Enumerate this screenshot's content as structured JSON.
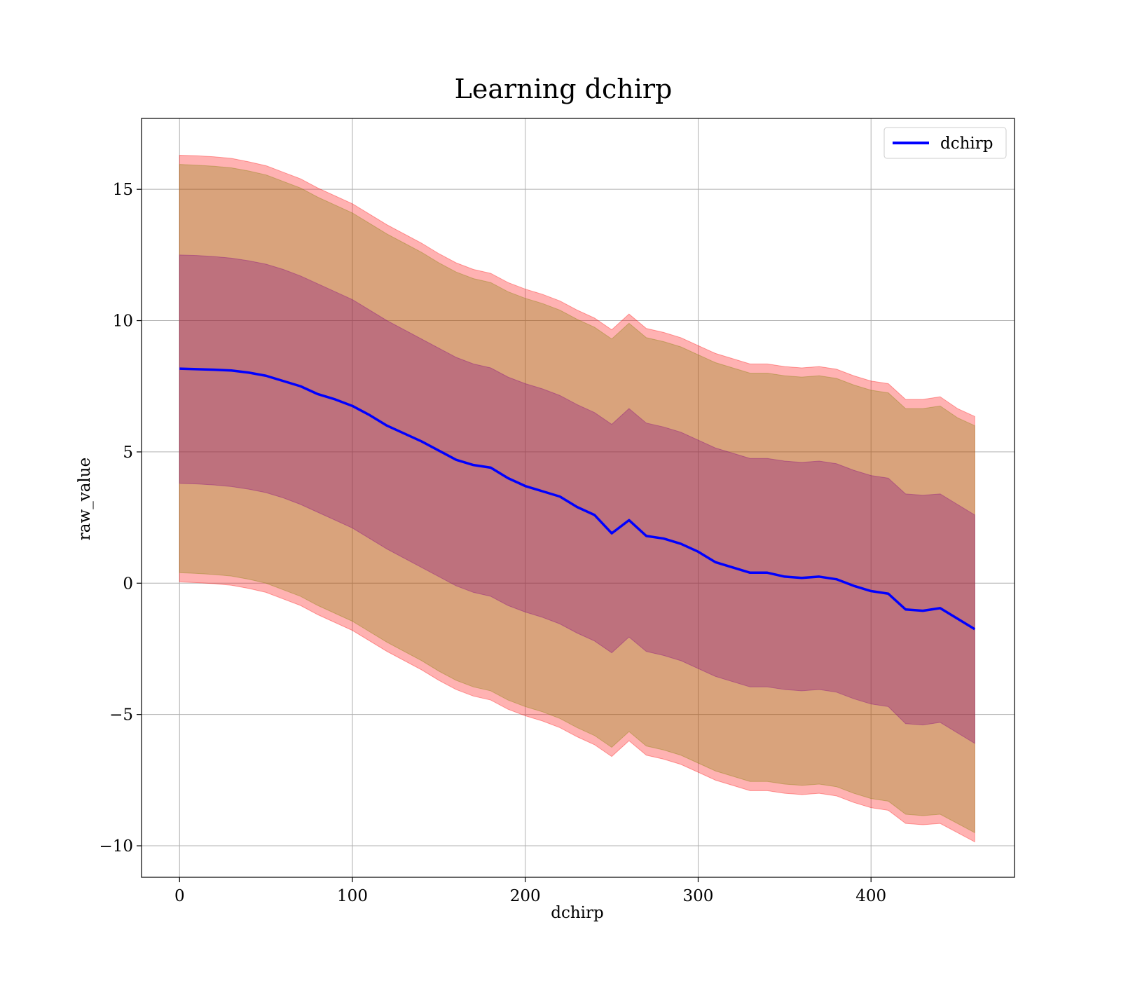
{
  "chart_data": {
    "type": "line",
    "title": "Learning dchirp",
    "xlabel": "dchirp",
    "ylabel": "raw_value",
    "xlim": [
      -22,
      483
    ],
    "ylim": [
      -11.2,
      17.7
    ],
    "xticks": [
      0,
      100,
      200,
      300,
      400
    ],
    "xtick_labels": [
      "0",
      "100",
      "200",
      "300",
      "400"
    ],
    "yticks": [
      -10,
      -5,
      0,
      5,
      10,
      15
    ],
    "ytick_labels": [
      "−10",
      "−5",
      "0",
      "5",
      "10",
      "15"
    ],
    "grid": true,
    "legend": {
      "position": "top-right",
      "entries": [
        "dchirp"
      ]
    },
    "colors": {
      "mean_line": "#0000ff",
      "band_outer": "#ff0000",
      "band_middle": "#808000",
      "band_inner": "#800080"
    },
    "x": [
      0,
      10,
      20,
      30,
      40,
      50,
      60,
      70,
      80,
      90,
      100,
      110,
      120,
      130,
      140,
      150,
      160,
      170,
      180,
      190,
      200,
      210,
      220,
      230,
      240,
      250,
      260,
      270,
      280,
      290,
      300,
      310,
      320,
      330,
      340,
      350,
      360,
      370,
      380,
      390,
      400,
      410,
      420,
      430,
      440,
      450,
      460
    ],
    "series": [
      {
        "name": "dchirp",
        "role": "mean",
        "values": [
          8.17,
          8.15,
          8.13,
          8.1,
          8.02,
          7.9,
          7.7,
          7.5,
          7.2,
          7.0,
          6.75,
          6.4,
          6.0,
          5.7,
          5.4,
          5.05,
          4.7,
          4.5,
          4.4,
          4.0,
          3.7,
          3.5,
          3.3,
          2.9,
          2.6,
          1.9,
          2.4,
          1.8,
          1.7,
          1.5,
          1.2,
          0.8,
          0.6,
          0.4,
          0.4,
          0.25,
          0.2,
          0.25,
          0.15,
          -0.1,
          -0.3,
          -0.4,
          -1.0,
          -1.05,
          -0.95,
          -1.35,
          -1.75
        ]
      }
    ],
    "bands": [
      {
        "role": "outer",
        "upper": [
          16.3,
          16.28,
          16.24,
          16.18,
          16.05,
          15.9,
          15.65,
          15.4,
          15.05,
          14.75,
          14.45,
          14.05,
          13.65,
          13.3,
          12.95,
          12.55,
          12.2,
          11.95,
          11.8,
          11.45,
          11.2,
          11.0,
          10.75,
          10.4,
          10.1,
          9.65,
          10.25,
          9.7,
          9.55,
          9.35,
          9.05,
          8.75,
          8.55,
          8.35,
          8.35,
          8.25,
          8.2,
          8.25,
          8.15,
          7.9,
          7.7,
          7.6,
          7.0,
          7.0,
          7.1,
          6.65,
          6.35
        ],
        "lower": [
          0.05,
          0.02,
          -0.02,
          -0.08,
          -0.2,
          -0.35,
          -0.6,
          -0.85,
          -1.2,
          -1.5,
          -1.8,
          -2.2,
          -2.6,
          -2.95,
          -3.3,
          -3.7,
          -4.05,
          -4.3,
          -4.45,
          -4.8,
          -5.05,
          -5.25,
          -5.5,
          -5.85,
          -6.15,
          -6.6,
          -6.0,
          -6.55,
          -6.7,
          -6.9,
          -7.2,
          -7.5,
          -7.7,
          -7.9,
          -7.9,
          -8.0,
          -8.05,
          -8.0,
          -8.1,
          -8.35,
          -8.55,
          -8.65,
          -9.15,
          -9.2,
          -9.15,
          -9.5,
          -9.85
        ]
      },
      {
        "role": "middle",
        "upper": [
          15.95,
          15.92,
          15.88,
          15.82,
          15.7,
          15.55,
          15.3,
          15.05,
          14.7,
          14.4,
          14.1,
          13.7,
          13.3,
          12.95,
          12.6,
          12.2,
          11.85,
          11.6,
          11.45,
          11.1,
          10.85,
          10.65,
          10.4,
          10.05,
          9.75,
          9.3,
          9.9,
          9.35,
          9.2,
          9.0,
          8.7,
          8.4,
          8.2,
          8.0,
          8.0,
          7.9,
          7.85,
          7.9,
          7.8,
          7.55,
          7.35,
          7.25,
          6.65,
          6.65,
          6.75,
          6.3,
          6.0
        ],
        "lower": [
          0.4,
          0.37,
          0.33,
          0.27,
          0.15,
          0.0,
          -0.25,
          -0.5,
          -0.85,
          -1.15,
          -1.45,
          -1.85,
          -2.25,
          -2.6,
          -2.95,
          -3.35,
          -3.7,
          -3.95,
          -4.1,
          -4.45,
          -4.7,
          -4.9,
          -5.15,
          -5.5,
          -5.8,
          -6.25,
          -5.65,
          -6.2,
          -6.35,
          -6.55,
          -6.85,
          -7.15,
          -7.35,
          -7.55,
          -7.55,
          -7.65,
          -7.7,
          -7.65,
          -7.75,
          -8.0,
          -8.2,
          -8.3,
          -8.8,
          -8.85,
          -8.8,
          -9.15,
          -9.5
        ]
      },
      {
        "role": "inner",
        "upper": [
          12.5,
          12.48,
          12.44,
          12.38,
          12.28,
          12.15,
          11.95,
          11.7,
          11.4,
          11.1,
          10.8,
          10.4,
          10.0,
          9.65,
          9.3,
          8.95,
          8.6,
          8.35,
          8.2,
          7.85,
          7.6,
          7.4,
          7.15,
          6.8,
          6.5,
          6.05,
          6.65,
          6.1,
          5.95,
          5.75,
          5.45,
          5.15,
          4.95,
          4.75,
          4.75,
          4.65,
          4.6,
          4.65,
          4.55,
          4.3,
          4.1,
          4.0,
          3.4,
          3.35,
          3.4,
          3.0,
          2.6
        ],
        "lower": [
          3.8,
          3.78,
          3.74,
          3.68,
          3.58,
          3.45,
          3.25,
          3.0,
          2.7,
          2.4,
          2.1,
          1.7,
          1.3,
          0.95,
          0.6,
          0.25,
          -0.1,
          -0.35,
          -0.5,
          -0.85,
          -1.1,
          -1.3,
          -1.55,
          -1.9,
          -2.2,
          -2.65,
          -2.05,
          -2.6,
          -2.75,
          -2.95,
          -3.25,
          -3.55,
          -3.75,
          -3.95,
          -3.95,
          -4.05,
          -4.1,
          -4.05,
          -4.15,
          -4.4,
          -4.6,
          -4.7,
          -5.35,
          -5.4,
          -5.3,
          -5.7,
          -6.1
        ]
      }
    ]
  }
}
